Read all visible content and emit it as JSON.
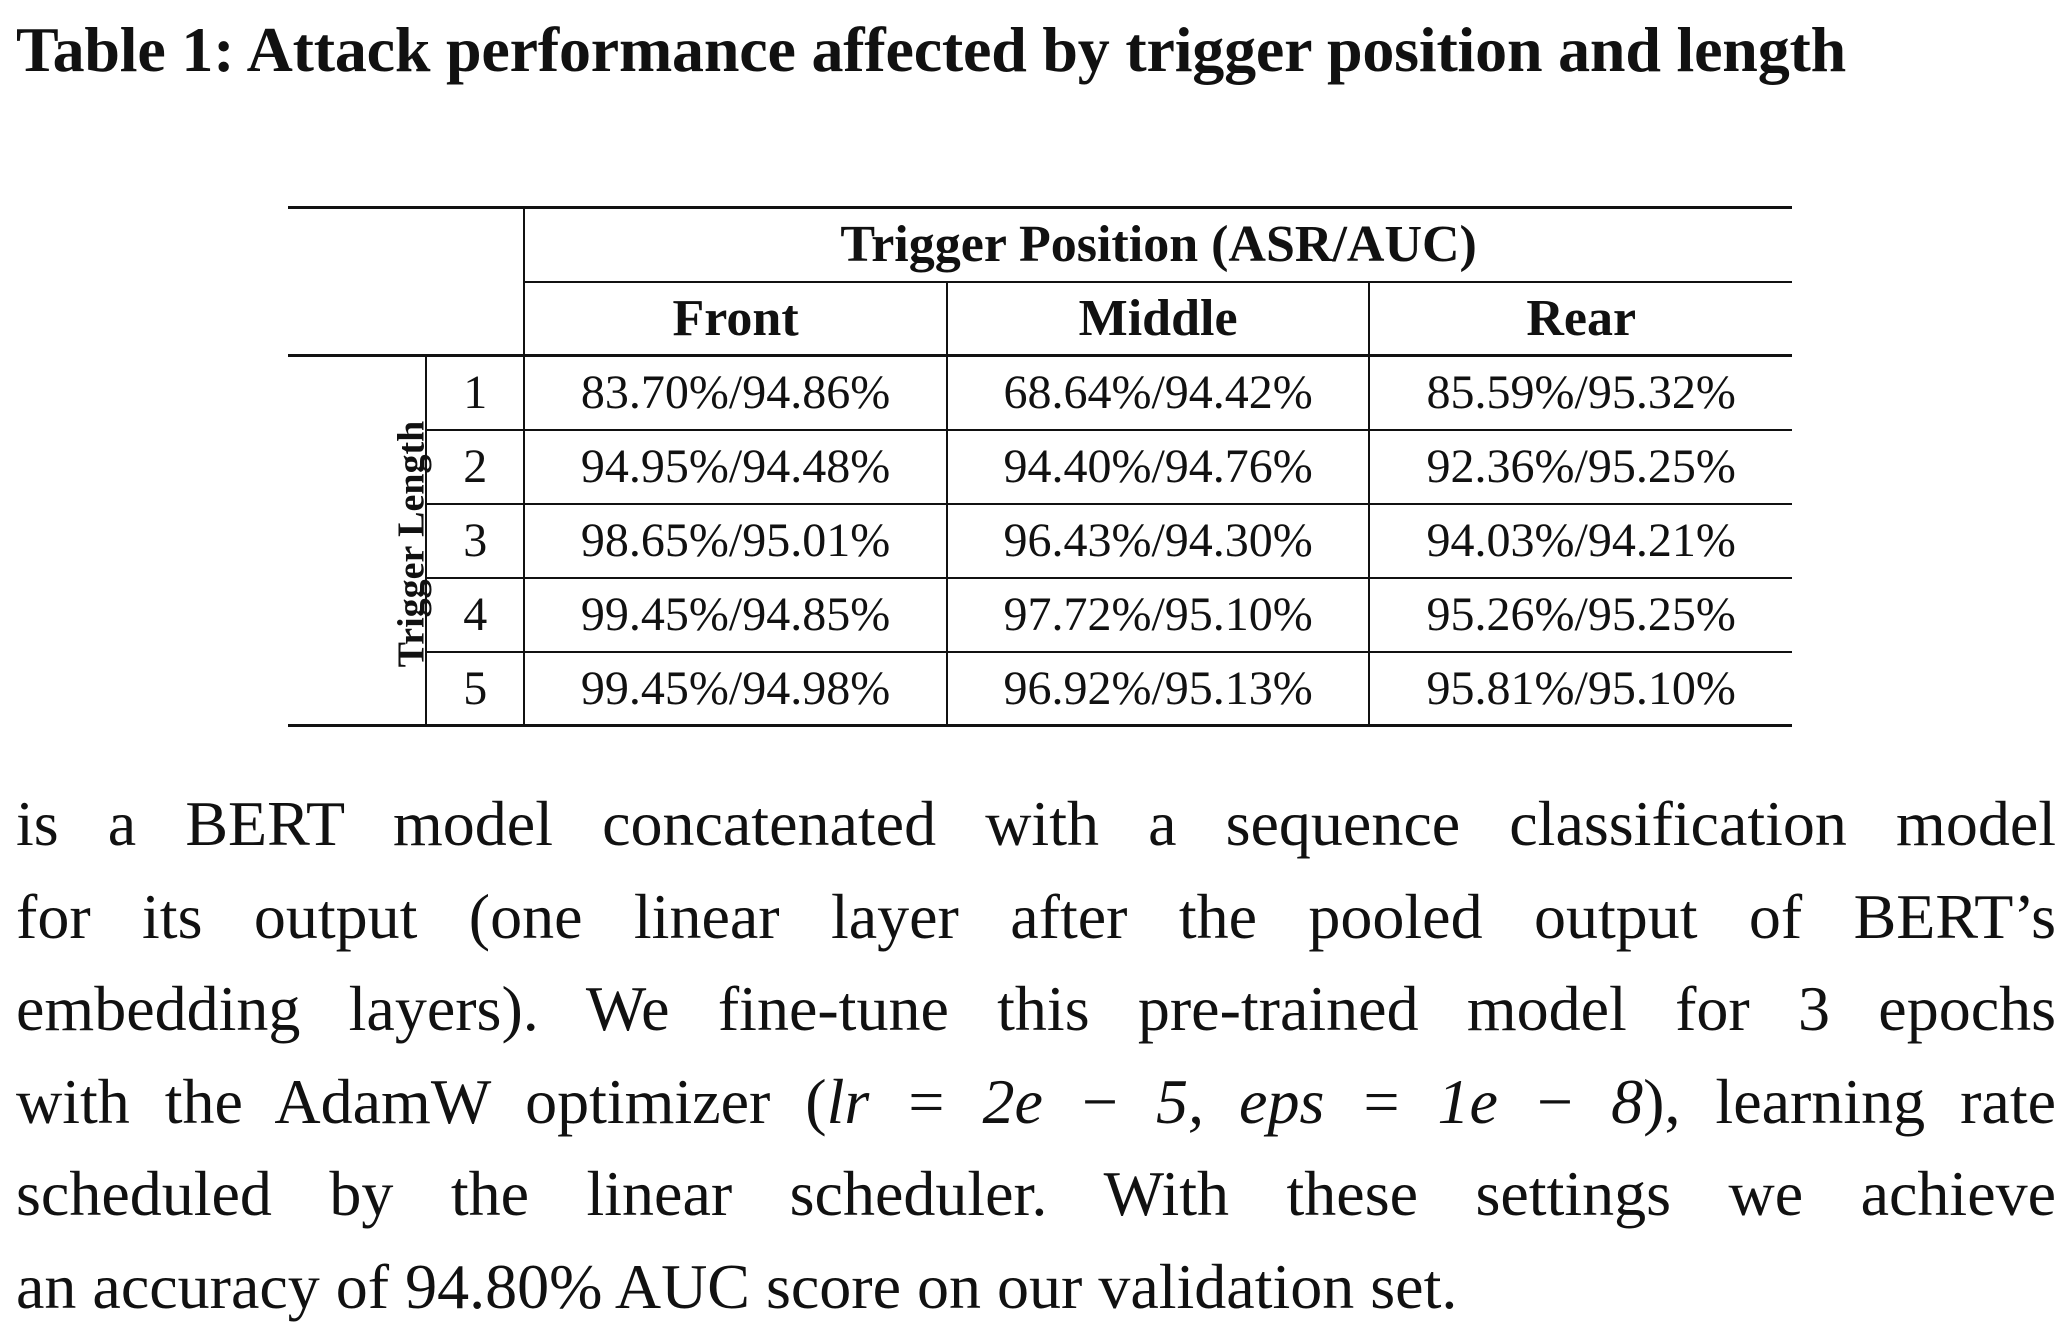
{
  "caption": "Table 1: Attack performance affected by trigger position and length",
  "table": {
    "group_header": "Trigger Position (ASR/AUC)",
    "row_axis_label": "Trigger Length",
    "columns": [
      "Front",
      "Middle",
      "Rear"
    ],
    "rows": [
      {
        "length": "1",
        "cells": [
          "83.70%/94.86%",
          "68.64%/94.42%",
          "85.59%/95.32%"
        ]
      },
      {
        "length": "2",
        "cells": [
          "94.95%/94.48%",
          "94.40%/94.76%",
          "92.36%/95.25%"
        ]
      },
      {
        "length": "3",
        "cells": [
          "98.65%/95.01%",
          "96.43%/94.30%",
          "94.03%/94.21%"
        ]
      },
      {
        "length": "4",
        "cells": [
          "99.45%/94.85%",
          "97.72%/95.10%",
          "95.26%/95.25%"
        ]
      },
      {
        "length": "5",
        "cells": [
          "99.45%/94.98%",
          "96.92%/95.13%",
          "95.81%/95.10%"
        ]
      }
    ]
  },
  "body": {
    "line1": "is a BERT model concatenated with a sequence classification model",
    "line2": "for its output (one linear layer after the pooled output of BERT’s",
    "line3": "embedding layers). We fine-tune this pre-trained model for 3 epochs",
    "line4_pre": "with the AdamW optimizer (",
    "line4_math": "lr = 2e − 5, eps = 1e − 8",
    "line4_post": "), learning rate",
    "line5": "scheduled by the linear scheduler. With these settings we achieve",
    "line6": "an accuracy of 94.80% AUC score on our validation set."
  }
}
